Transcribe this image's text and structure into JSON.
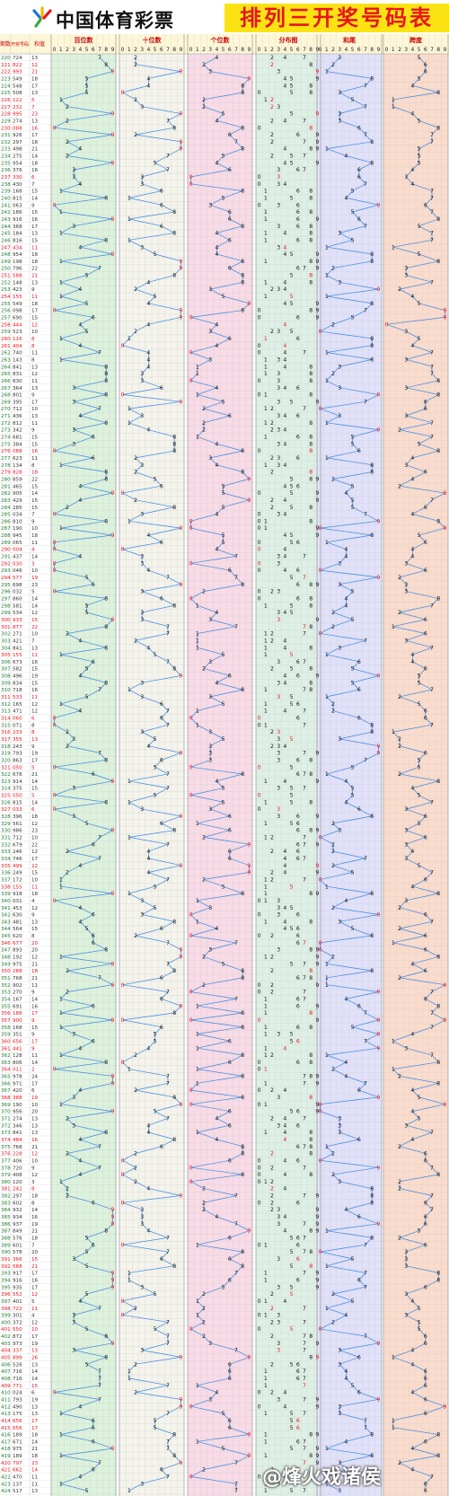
{
  "header": {
    "logo_text": "中国体育彩票",
    "title": "排列三开奖号码表"
  },
  "watermark": "@烽火戏诸侯",
  "colors": {
    "title_bg": "#fbe313",
    "title_fg": "#e8141c",
    "panel_hundreds": "#ddf2dc",
    "panel_tens": "#f4f4ec",
    "panel_units": "#f8dbe6",
    "panel_distribution": "#def0e6",
    "panel_sum": "#e1e1fa",
    "panel_span": "#fadccd",
    "line": "#3a86e0",
    "red_digit": "#e8141c",
    "blue_digit": "#1e3cd0"
  },
  "chart_data": {
    "type": "table",
    "title": "排列三开奖号码表",
    "column_headers": {
      "issue": "期数",
      "number": "开奖号码",
      "sum": "和值",
      "hundreds": "百位数",
      "tens": "十位数",
      "units": "个位数",
      "distribution": "分布图",
      "sum_tail": "和尾",
      "span": "跨度"
    },
    "digit_labels": [
      "0",
      "1",
      "2",
      "3",
      "4",
      "5",
      "6",
      "7",
      "8",
      "9"
    ],
    "draws": [
      {
        "issue": "220",
        "number": "724",
        "sum": 13
      },
      {
        "issue": "221",
        "number": "822",
        "sum": 12
      },
      {
        "issue": "222",
        "number": "993",
        "sum": 21
      },
      {
        "issue": "223",
        "number": "549",
        "sum": 18
      },
      {
        "issue": "224",
        "number": "548",
        "sum": 17
      },
      {
        "issue": "225",
        "number": "508",
        "sum": 13
      },
      {
        "issue": "226",
        "number": "122",
        "sum": 5
      },
      {
        "issue": "227",
        "number": "232",
        "sum": 7
      },
      {
        "issue": "228",
        "number": "995",
        "sum": 23
      },
      {
        "issue": "229",
        "number": "274",
        "sum": 13
      },
      {
        "issue": "230",
        "number": "088",
        "sum": 16
      },
      {
        "issue": "231",
        "number": "926",
        "sum": 17
      },
      {
        "issue": "232",
        "number": "297",
        "sum": 18
      },
      {
        "issue": "233",
        "number": "498",
        "sum": 21
      },
      {
        "issue": "234",
        "number": "275",
        "sum": 14
      },
      {
        "issue": "235",
        "number": "954",
        "sum": 18
      },
      {
        "issue": "236",
        "number": "376",
        "sum": 16
      },
      {
        "issue": "237",
        "number": "330",
        "sum": 6
      },
      {
        "issue": "238",
        "number": "430",
        "sum": 7
      },
      {
        "issue": "239",
        "number": "168",
        "sum": 15
      },
      {
        "issue": "240",
        "number": "815",
        "sum": 14
      },
      {
        "issue": "241",
        "number": "063",
        "sum": 9
      },
      {
        "issue": "242",
        "number": "186",
        "sum": 15
      },
      {
        "issue": "243",
        "number": "916",
        "sum": 16
      },
      {
        "issue": "244",
        "number": "368",
        "sum": 17
      },
      {
        "issue": "245",
        "number": "184",
        "sum": 13
      },
      {
        "issue": "246",
        "number": "816",
        "sum": 15
      },
      {
        "issue": "247",
        "number": "434",
        "sum": 11
      },
      {
        "issue": "248",
        "number": "954",
        "sum": 18
      },
      {
        "issue": "249",
        "number": "198",
        "sum": 18
      },
      {
        "issue": "250",
        "number": "796",
        "sum": 22
      },
      {
        "issue": "251",
        "number": "588",
        "sum": 21
      },
      {
        "issue": "252",
        "number": "148",
        "sum": 13
      },
      {
        "issue": "253",
        "number": "423",
        "sum": 9
      },
      {
        "issue": "254",
        "number": "155",
        "sum": 11
      },
      {
        "issue": "255",
        "number": "549",
        "sum": 18
      },
      {
        "issue": "256",
        "number": "098",
        "sum": 17
      },
      {
        "issue": "257",
        "number": "690",
        "sum": 15
      },
      {
        "issue": "258",
        "number": "444",
        "sum": 12
      },
      {
        "issue": "259",
        "number": "523",
        "sum": 10
      },
      {
        "issue": "260",
        "number": "116",
        "sum": 8
      },
      {
        "issue": "261",
        "number": "404",
        "sum": 8
      },
      {
        "issue": "262",
        "number": "740",
        "sum": 11
      },
      {
        "issue": "263",
        "number": "143",
        "sum": 8
      },
      {
        "issue": "264",
        "number": "841",
        "sum": 13
      },
      {
        "issue": "265",
        "number": "831",
        "sum": 12
      },
      {
        "issue": "266",
        "number": "830",
        "sum": 11
      },
      {
        "issue": "267",
        "number": "364",
        "sum": 13
      },
      {
        "issue": "268",
        "number": "801",
        "sum": 9
      },
      {
        "issue": "269",
        "number": "395",
        "sum": 17
      },
      {
        "issue": "270",
        "number": "712",
        "sum": 10
      },
      {
        "issue": "271",
        "number": "436",
        "sum": 13
      },
      {
        "issue": "272",
        "number": "812",
        "sum": 11
      },
      {
        "issue": "273",
        "number": "342",
        "sum": 9
      },
      {
        "issue": "274",
        "number": "681",
        "sum": 15
      },
      {
        "issue": "275",
        "number": "384",
        "sum": 15
      },
      {
        "issue": "276",
        "number": "088",
        "sum": 16
      },
      {
        "issue": "277",
        "number": "623",
        "sum": 11
      },
      {
        "issue": "278",
        "number": "134",
        "sum": 8
      },
      {
        "issue": "279",
        "number": "828",
        "sum": 18
      },
      {
        "issue": "280",
        "number": "859",
        "sum": 22
      },
      {
        "issue": "281",
        "number": "465",
        "sum": 15
      },
      {
        "issue": "282",
        "number": "905",
        "sum": 14
      },
      {
        "issue": "283",
        "number": "429",
        "sum": 15
      },
      {
        "issue": "284",
        "number": "285",
        "sum": 15
      },
      {
        "issue": "285",
        "number": "034",
        "sum": 7
      },
      {
        "issue": "286",
        "number": "810",
        "sum": 9
      },
      {
        "issue": "287",
        "number": "190",
        "sum": 10
      },
      {
        "issue": "288",
        "number": "945",
        "sum": 18
      },
      {
        "issue": "289",
        "number": "065",
        "sum": 11
      },
      {
        "issue": "290",
        "number": "004",
        "sum": 4
      },
      {
        "issue": "291",
        "number": "437",
        "sum": 14
      },
      {
        "issue": "292",
        "number": "030",
        "sum": 3
      },
      {
        "issue": "293",
        "number": "046",
        "sum": 10
      },
      {
        "issue": "294",
        "number": "577",
        "sum": 19
      },
      {
        "issue": "295",
        "number": "698",
        "sum": 23
      },
      {
        "issue": "296",
        "number": "032",
        "sum": 5
      },
      {
        "issue": "297",
        "number": "860",
        "sum": 14
      },
      {
        "issue": "298",
        "number": "581",
        "sum": 14
      },
      {
        "issue": "299",
        "number": "534",
        "sum": 12
      },
      {
        "issue": "300",
        "number": "933",
        "sum": 15
      },
      {
        "issue": "301",
        "number": "877",
        "sum": 22
      },
      {
        "issue": "302",
        "number": "271",
        "sum": 10
      },
      {
        "issue": "303",
        "number": "421",
        "sum": 7
      },
      {
        "issue": "304",
        "number": "841",
        "sum": 13
      },
      {
        "issue": "305",
        "number": "155",
        "sum": 11
      },
      {
        "issue": "306",
        "number": "673",
        "sum": 16
      },
      {
        "issue": "307",
        "number": "582",
        "sum": 15
      },
      {
        "issue": "308",
        "number": "496",
        "sum": 19
      },
      {
        "issue": "309",
        "number": "834",
        "sum": 15
      },
      {
        "issue": "310",
        "number": "718",
        "sum": 16
      },
      {
        "issue": "311",
        "number": "533",
        "sum": 11
      },
      {
        "issue": "312",
        "number": "165",
        "sum": 12
      },
      {
        "issue": "313",
        "number": "471",
        "sum": 12
      },
      {
        "issue": "314",
        "number": "060",
        "sum": 6
      },
      {
        "issue": "315",
        "number": "071",
        "sum": 8
      },
      {
        "issue": "316",
        "number": "233",
        "sum": 8
      },
      {
        "issue": "317",
        "number": "355",
        "sum": 13
      },
      {
        "issue": "318",
        "number": "243",
        "sum": 9
      },
      {
        "issue": "319",
        "number": "793",
        "sum": 19
      },
      {
        "issue": "320",
        "number": "863",
        "sum": 17
      },
      {
        "issue": "321",
        "number": "050",
        "sum": 5
      },
      {
        "issue": "322",
        "number": "678",
        "sum": 21
      },
      {
        "issue": "323",
        "number": "914",
        "sum": 14
      },
      {
        "issue": "324",
        "number": "375",
        "sum": 15
      },
      {
        "issue": "325",
        "number": "050",
        "sum": 5
      },
      {
        "issue": "326",
        "number": "815",
        "sum": 14
      },
      {
        "issue": "327",
        "number": "033",
        "sum": 6
      },
      {
        "issue": "328",
        "number": "396",
        "sum": 18
      },
      {
        "issue": "329",
        "number": "561",
        "sum": 12
      },
      {
        "issue": "330",
        "number": "986",
        "sum": 23
      },
      {
        "issue": "331",
        "number": "712",
        "sum": 10
      },
      {
        "issue": "332",
        "number": "679",
        "sum": 22
      },
      {
        "issue": "333",
        "number": "246",
        "sum": 12
      },
      {
        "issue": "334",
        "number": "746",
        "sum": 17
      },
      {
        "issue": "335",
        "number": "499",
        "sum": 22
      },
      {
        "issue": "336",
        "number": "249",
        "sum": 15
      },
      {
        "issue": "337",
        "number": "172",
        "sum": 10
      },
      {
        "issue": "338",
        "number": "155",
        "sum": 11
      },
      {
        "issue": "339",
        "number": "918",
        "sum": 18
      },
      {
        "issue": "340",
        "number": "031",
        "sum": 4
      },
      {
        "issue": "341",
        "number": "453",
        "sum": 12
      },
      {
        "issue": "342",
        "number": "630",
        "sum": 9
      },
      {
        "issue": "343",
        "number": "481",
        "sum": 13
      },
      {
        "issue": "344",
        "number": "564",
        "sum": 15
      },
      {
        "issue": "345",
        "number": "620",
        "sum": 8
      },
      {
        "issue": "346",
        "number": "677",
        "sum": 20
      },
      {
        "issue": "347",
        "number": "893",
        "sum": 20
      },
      {
        "issue": "348",
        "number": "192",
        "sum": 12
      },
      {
        "issue": "349",
        "number": "975",
        "sum": 21
      },
      {
        "issue": "350",
        "number": "288",
        "sum": 18
      },
      {
        "issue": "351",
        "number": "768",
        "sum": 21
      },
      {
        "issue": "352",
        "number": "902",
        "sum": 11
      },
      {
        "issue": "353",
        "number": "270",
        "sum": 9
      },
      {
        "issue": "354",
        "number": "167",
        "sum": 14
      },
      {
        "issue": "355",
        "number": "691",
        "sum": 16
      },
      {
        "issue": "356",
        "number": "188",
        "sum": 17
      },
      {
        "issue": "357",
        "number": "900",
        "sum": 9
      },
      {
        "issue": "358",
        "number": "168",
        "sum": 15
      },
      {
        "issue": "359",
        "number": "351",
        "sum": 9
      },
      {
        "issue": "360",
        "number": "656",
        "sum": 17
      },
      {
        "issue": "361",
        "number": "441",
        "sum": 9
      },
      {
        "issue": "362",
        "number": "128",
        "sum": 11
      },
      {
        "issue": "363",
        "number": "806",
        "sum": 14
      },
      {
        "issue": "364",
        "number": "011",
        "sum": 2
      },
      {
        "issue": "365",
        "number": "978",
        "sum": 24
      },
      {
        "issue": "366",
        "number": "971",
        "sum": 17
      },
      {
        "issue": "367",
        "number": "420",
        "sum": 6
      },
      {
        "issue": "368",
        "number": "388",
        "sum": 19
      },
      {
        "issue": "369",
        "number": "190",
        "sum": 10
      },
      {
        "issue": "370",
        "number": "956",
        "sum": 20
      },
      {
        "issue": "371",
        "number": "274",
        "sum": 13
      },
      {
        "issue": "372",
        "number": "346",
        "sum": 13
      },
      {
        "issue": "373",
        "number": "841",
        "sum": 13
      },
      {
        "issue": "374",
        "number": "484",
        "sum": 16
      },
      {
        "issue": "375",
        "number": "768",
        "sum": 21
      },
      {
        "issue": "376",
        "number": "228",
        "sum": 12
      },
      {
        "issue": "377",
        "number": "406",
        "sum": 10
      },
      {
        "issue": "378",
        "number": "720",
        "sum": 9
      },
      {
        "issue": "379",
        "number": "408",
        "sum": 12
      },
      {
        "issue": "380",
        "number": "120",
        "sum": 3
      },
      {
        "issue": "381",
        "number": "242",
        "sum": 8
      },
      {
        "issue": "382",
        "number": "297",
        "sum": 18
      },
      {
        "issue": "383",
        "number": "602",
        "sum": 8
      },
      {
        "issue": "384",
        "number": "932",
        "sum": 14
      },
      {
        "issue": "385",
        "number": "934",
        "sum": 16
      },
      {
        "issue": "386",
        "number": "937",
        "sum": 19
      },
      {
        "issue": "387",
        "number": "849",
        "sum": 21
      },
      {
        "issue": "388",
        "number": "576",
        "sum": 18
      },
      {
        "issue": "389",
        "number": "601",
        "sum": 7
      },
      {
        "issue": "390",
        "number": "578",
        "sum": 20
      },
      {
        "issue": "391",
        "number": "366",
        "sum": 15
      },
      {
        "issue": "392",
        "number": "588",
        "sum": 21
      },
      {
        "issue": "393",
        "number": "917",
        "sum": 17
      },
      {
        "issue": "394",
        "number": "916",
        "sum": 16
      },
      {
        "issue": "395",
        "number": "935",
        "sum": 17
      },
      {
        "issue": "396",
        "number": "552",
        "sum": 12
      },
      {
        "issue": "397",
        "number": "401",
        "sum": 5
      },
      {
        "issue": "398",
        "number": "722",
        "sum": 11
      },
      {
        "issue": "399",
        "number": "301",
        "sum": 4
      },
      {
        "issue": "400",
        "number": "372",
        "sum": 12
      },
      {
        "issue": "401",
        "number": "550",
        "sum": 10
      },
      {
        "issue": "402",
        "number": "872",
        "sum": 17
      },
      {
        "issue": "403",
        "number": "973",
        "sum": 19
      },
      {
        "issue": "404",
        "number": "337",
        "sum": 13
      },
      {
        "issue": "405",
        "number": "899",
        "sum": 26
      },
      {
        "issue": "406",
        "number": "526",
        "sum": 13
      },
      {
        "issue": "407",
        "number": "716",
        "sum": 14
      },
      {
        "issue": "408",
        "number": "716",
        "sum": 14
      },
      {
        "issue": "409",
        "number": "771",
        "sum": 15
      },
      {
        "issue": "410",
        "number": "024",
        "sum": 6
      },
      {
        "issue": "411",
        "number": "793",
        "sum": 19
      },
      {
        "issue": "412",
        "number": "490",
        "sum": 13
      },
      {
        "issue": "413",
        "number": "175",
        "sum": 13
      },
      {
        "issue": "414",
        "number": "656",
        "sum": 17
      },
      {
        "issue": "415",
        "number": "656",
        "sum": 17
      },
      {
        "issue": "416",
        "number": "189",
        "sum": 18
      },
      {
        "issue": "417",
        "number": "671",
        "sum": 14
      },
      {
        "issue": "418",
        "number": "975",
        "sum": 21
      },
      {
        "issue": "419",
        "number": "189",
        "sum": 18
      },
      {
        "issue": "420",
        "number": "797",
        "sum": 23
      },
      {
        "issue": "421",
        "number": "662",
        "sum": 14
      },
      {
        "issue": "422",
        "number": "470",
        "sum": 11
      },
      {
        "issue": "423",
        "number": "137",
        "sum": 11
      },
      {
        "issue": "424",
        "number": "517",
        "sum": 13
      }
    ]
  }
}
